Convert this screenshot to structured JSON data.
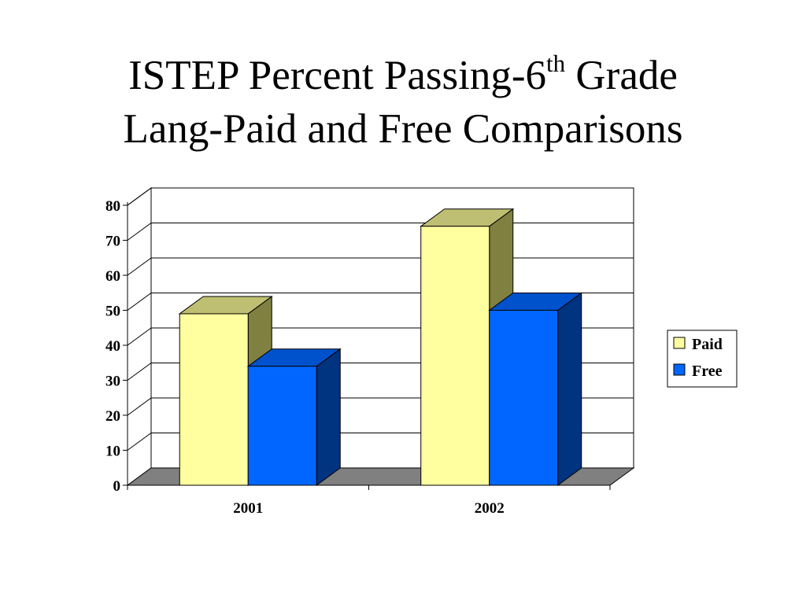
{
  "slide": {
    "title_line1_main": "ISTEP Percent Passing-6",
    "title_line1_sup": "th",
    "title_line1_tail": " Grade",
    "title_line2": "Lang-Paid and Free Comparisons"
  },
  "chart_data": {
    "type": "bar",
    "title": "",
    "xlabel": "",
    "ylabel": "",
    "categories": [
      "2001",
      "2002"
    ],
    "series": [
      {
        "name": "Paid",
        "values": [
          49,
          74
        ],
        "color": "#FFFFA0",
        "top_color": "#BFBF73",
        "side_color": "#808040"
      },
      {
        "name": "Free",
        "values": [
          34,
          50
        ],
        "color": "#0066FF",
        "top_color": "#0052CC",
        "side_color": "#003380"
      }
    ],
    "ylim": [
      0,
      80
    ],
    "yticks": [
      0,
      10,
      20,
      30,
      40,
      50,
      60,
      70,
      80
    ],
    "grid": true,
    "three_d": true,
    "floor_color": "#808080",
    "legend_position": "right"
  }
}
